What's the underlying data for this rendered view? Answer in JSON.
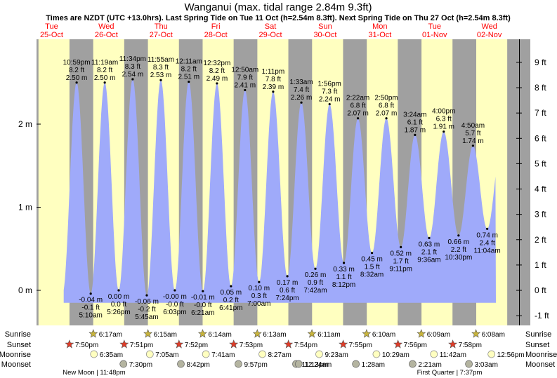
{
  "title": "Wanganui (max. tidal range 2.84m 9.3ft)",
  "subtitle": "Times are NZDT (UTC +13.0hrs). Last Spring Tide on Tue 11 Oct (h=2.54m 8.3ft). Next Spring Tide on Thu 27 Oct (h=2.54m 8.3ft)",
  "colors": {
    "tide": "#9faafa",
    "day": "#ffffc0",
    "night": "#a0a0a0",
    "sunrise": "#c8b43c",
    "sunset": "#e03c28",
    "moonrise": "#ffffc0",
    "moonset": "#b4b4a0"
  },
  "days": [
    {
      "dow": "Tue",
      "date": "25-Oct"
    },
    {
      "dow": "Wed",
      "date": "26-Oct"
    },
    {
      "dow": "Thu",
      "date": "27-Oct"
    },
    {
      "dow": "Fri",
      "date": "28-Oct"
    },
    {
      "dow": "Sat",
      "date": "29-Oct"
    },
    {
      "dow": "Sun",
      "date": "30-Oct"
    },
    {
      "dow": "Mon",
      "date": "31-Oct"
    },
    {
      "dow": "Tue",
      "date": "01-Nov"
    },
    {
      "dow": "Wed",
      "date": "02-Nov"
    }
  ],
  "row_labels": [
    "Sunrise",
    "Sunset",
    "Moonrise",
    "Moonset"
  ],
  "sun": {
    "sunrise": [
      "6:17am",
      "6:15am",
      "6:14am",
      "6:13am",
      "6:11am",
      "6:10am",
      "6:09am",
      "6:08am"
    ],
    "sunset": [
      "7:50pm",
      "7:51pm",
      "7:52pm",
      "7:53pm",
      "7:54pm",
      "7:55pm",
      "7:56pm",
      "7:58pm"
    ]
  },
  "moon": {
    "moonrise": [
      "6:35am",
      "7:05am",
      "7:41am",
      "8:27am",
      "9:23am",
      "10:29am",
      "11:42am",
      "12:56pm"
    ],
    "moonset": [
      "7:30pm",
      "8:42pm",
      "9:57pm",
      "11:13pm",
      "12:24am",
      "1:28am",
      "2:21am",
      "3:03am"
    ]
  },
  "phases": [
    {
      "label": "New Moon | 11:48pm"
    },
    {
      "label": "First Quarter | 7:37pm"
    }
  ],
  "chart_data": {
    "type": "area",
    "title": "Wanganui (max. tidal range 2.84m 9.3ft)",
    "y_unit_left": "m",
    "y_unit_right": "ft",
    "left_ticks": [
      "2 m",
      "1 m",
      "0 m"
    ],
    "right_ticks": [
      "9 ft",
      "8 ft",
      "7 ft",
      "6 ft",
      "5 ft",
      "4 ft",
      "3 ft",
      "2 ft",
      "1 ft",
      "0 ft",
      "-1 ft"
    ],
    "ylim_m": [
      -0.4,
      3.0
    ],
    "tides": [
      {
        "type": "high",
        "day": 0,
        "time": "10:59 pm",
        "ft": "8.2 ft",
        "m": "2.50 m",
        "h": 2.5
      },
      {
        "type": "low",
        "day": 1,
        "time": "5:10 am",
        "ft": "-0.1 ft",
        "m": "-0.04 m",
        "h": -0.04
      },
      {
        "type": "high",
        "day": 1,
        "time": "11:19 am",
        "ft": "8.2 ft",
        "m": "2.50 m",
        "h": 2.5
      },
      {
        "type": "low",
        "day": 1,
        "time": "5:26 pm",
        "ft": "0.0 ft",
        "m": "0.00 m",
        "h": 0.0
      },
      {
        "type": "high",
        "day": 1,
        "time": "11:34 pm",
        "ft": "8.3 ft",
        "m": "2.54 m",
        "h": 2.54
      },
      {
        "type": "low",
        "day": 2,
        "time": "5:45 am",
        "ft": "-0.2 ft",
        "m": "-0.06 m",
        "h": -0.06
      },
      {
        "type": "high",
        "day": 2,
        "time": "11:55 am",
        "ft": "8.3 ft",
        "m": "2.53 m",
        "h": 2.53
      },
      {
        "type": "low",
        "day": 2,
        "time": "6:03 pm",
        "ft": "-0.0 ft",
        "m": "-0.00 m",
        "h": 0.0
      },
      {
        "type": "high",
        "day": 3,
        "time": "12:11 am",
        "ft": "8.2 ft",
        "m": "2.51 m",
        "h": 2.51
      },
      {
        "type": "low",
        "day": 3,
        "time": "6:21 am",
        "ft": "-0.0 ft",
        "m": "-0.01 m",
        "h": -0.01
      },
      {
        "type": "high",
        "day": 3,
        "time": "12:32 pm",
        "ft": "8.2 ft",
        "m": "2.49 m",
        "h": 2.49
      },
      {
        "type": "low",
        "day": 3,
        "time": "6:41 pm",
        "ft": "0.2 ft",
        "m": "0.05 m",
        "h": 0.05
      },
      {
        "type": "high",
        "day": 4,
        "time": "12:50 am",
        "ft": "7.9 ft",
        "m": "2.41 m",
        "h": 2.41
      },
      {
        "type": "low",
        "day": 4,
        "time": "7:00 am",
        "ft": "0.3 ft",
        "m": "0.10 m",
        "h": 0.1
      },
      {
        "type": "high",
        "day": 4,
        "time": "1:11 pm",
        "ft": "7.8 ft",
        "m": "2.39 m",
        "h": 2.39
      },
      {
        "type": "low",
        "day": 4,
        "time": "7:24 pm",
        "ft": "0.6 ft",
        "m": "0.17 m",
        "h": 0.17
      },
      {
        "type": "high",
        "day": 5,
        "time": "1:33 am",
        "ft": "7.4 ft",
        "m": "2.26 m",
        "h": 2.26
      },
      {
        "type": "low",
        "day": 5,
        "time": "7:42 am",
        "ft": "0.9 ft",
        "m": "0.26 m",
        "h": 0.26
      },
      {
        "type": "high",
        "day": 5,
        "time": "1:56 pm",
        "ft": "7.3 ft",
        "m": "2.24 m",
        "h": 2.24
      },
      {
        "type": "low",
        "day": 5,
        "time": "8:12 pm",
        "ft": "1.1 ft",
        "m": "0.33 m",
        "h": 0.33
      },
      {
        "type": "high",
        "day": 6,
        "time": "2:22 am",
        "ft": "6.8 ft",
        "m": "2.07 m",
        "h": 2.07
      },
      {
        "type": "low",
        "day": 6,
        "time": "8:32 am",
        "ft": "1.5 ft",
        "m": "0.45 m",
        "h": 0.45
      },
      {
        "type": "high",
        "day": 6,
        "time": "2:50 pm",
        "ft": "6.8 ft",
        "m": "2.07 m",
        "h": 2.07
      },
      {
        "type": "low",
        "day": 6,
        "time": "9:11 pm",
        "ft": "1.7 ft",
        "m": "0.52 m",
        "h": 0.52
      },
      {
        "type": "high",
        "day": 7,
        "time": "3:24 am",
        "ft": "6.1 ft",
        "m": "1.87 m",
        "h": 1.87
      },
      {
        "type": "low",
        "day": 7,
        "time": "9:36 am",
        "ft": "2.1 ft",
        "m": "0.63 m",
        "h": 0.63
      },
      {
        "type": "high",
        "day": 7,
        "time": "4:00 pm",
        "ft": "6.3 ft",
        "m": "1.91 m",
        "h": 1.91
      },
      {
        "type": "low",
        "day": 7,
        "time": "10:30 pm",
        "ft": "2.2 ft",
        "m": "0.66 m",
        "h": 0.66
      },
      {
        "type": "high",
        "day": 8,
        "time": "4:50 am",
        "ft": "5.7 ft",
        "m": "1.74 m",
        "h": 1.74
      },
      {
        "type": "low",
        "day": 8,
        "time": "11:04 am",
        "ft": "2.4 ft",
        "m": "0.74 m",
        "h": 0.74
      }
    ]
  }
}
